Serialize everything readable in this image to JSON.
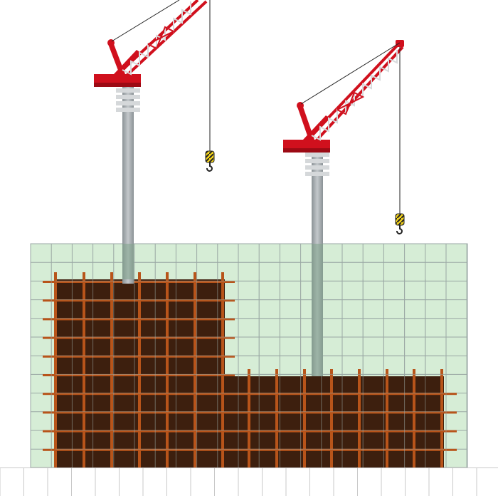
{
  "scene": {
    "background": "#ffffff",
    "colors": {
      "grid_fill": "#d6edd6",
      "grid_line": "#9aa7a4",
      "crane_red": "#d0101d",
      "crane_dark_red": "#9c0a14",
      "crane_white": "#e6e6e6",
      "mast_gray": "#a3a9ad",
      "mast_light": "#d5d8da",
      "steel_brown": "#3d1f0e",
      "rebar_orange": "#b8541a",
      "hook_yellow": "#f2d21c",
      "ground_line": "#c9c9c9"
    },
    "elements": [
      {
        "name": "scaffold-grid",
        "icon": "grid"
      },
      {
        "name": "building-frame",
        "icon": "steel-frame"
      },
      {
        "name": "tower-crane-left",
        "icon": "tower-crane"
      },
      {
        "name": "tower-crane-right",
        "icon": "tower-crane"
      },
      {
        "name": "crane-hook-left",
        "icon": "hook-icon"
      },
      {
        "name": "crane-hook-right",
        "icon": "hook-icon"
      },
      {
        "name": "ground-fence",
        "icon": "fence"
      }
    ]
  }
}
